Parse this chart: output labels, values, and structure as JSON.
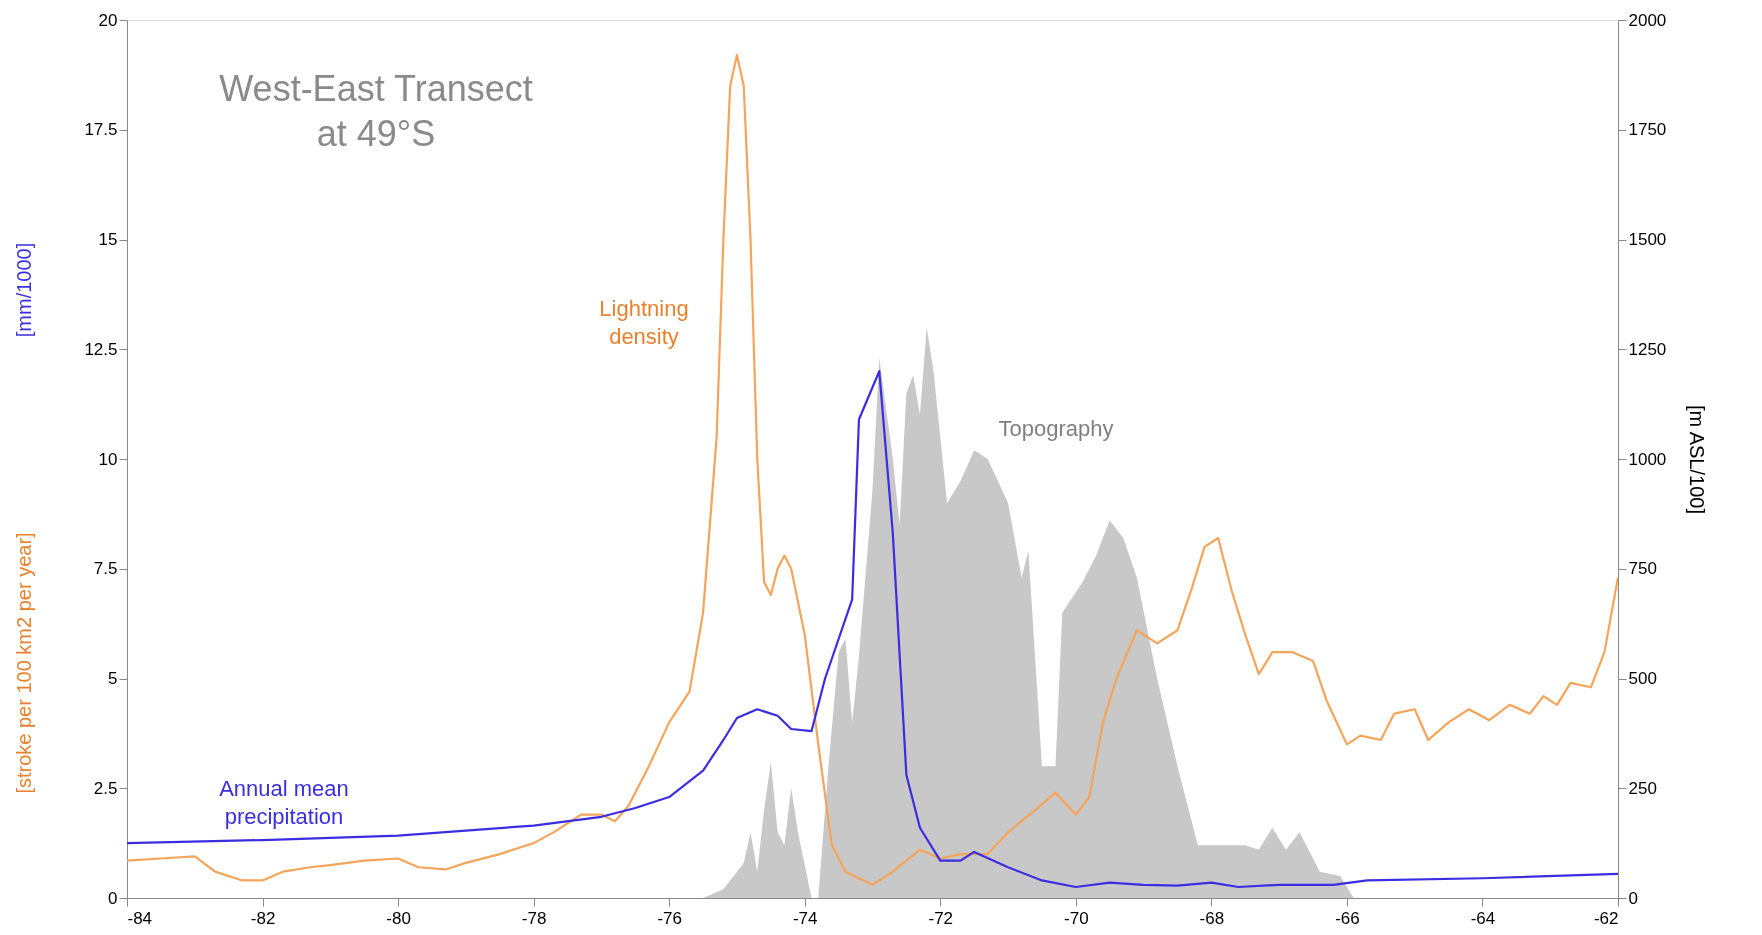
{
  "chart_data": {
    "type": "line",
    "title": "West-East Transect\nat 49°S",
    "ylabel": "[stroke per 100 km2 per year]",
    "y2label": "[m ASL/100]",
    "annotations": [
      "[mm/1000]"
    ],
    "xlim": [
      -84,
      -62
    ],
    "xticks": [
      -84,
      -82,
      -80,
      -78,
      -76,
      -74,
      -72,
      -70,
      -68,
      -66,
      -64,
      -62
    ],
    "ylim": [
      0,
      20
    ],
    "yticks": [
      0,
      2.5,
      5,
      7.5,
      10,
      12.5,
      15,
      17.5,
      20
    ],
    "y2lim": [
      0,
      2000
    ],
    "y2ticks": [
      0,
      250,
      500,
      750,
      1000,
      1250,
      1500,
      1750,
      2000
    ],
    "grid": false,
    "legend": false,
    "series": [
      {
        "name": "Topography",
        "type": "area",
        "axis": "y2",
        "color": "#c8c8c8",
        "x": [
          -75.5,
          -75.2,
          -74.9,
          -74.8,
          -74.7,
          -74.6,
          -74.5,
          -74.4,
          -74.3,
          -74.2,
          -74.1,
          -73.9,
          -73.8,
          -73.65,
          -73.5,
          -73.4,
          -73.3,
          -73.2,
          -73.0,
          -72.9,
          -72.7,
          -72.6,
          -72.5,
          -72.4,
          -72.3,
          -72.2,
          -72.1,
          -71.9,
          -71.7,
          -71.5,
          -71.3,
          -71.0,
          -70.8,
          -70.7,
          -70.5,
          -70.3,
          -70.2,
          -69.9,
          -69.7,
          -69.5,
          -69.3,
          -69.1,
          -68.8,
          -68.5,
          -68.2,
          -67.9,
          -67.5,
          -67.3,
          -67.1,
          -66.9,
          -66.7,
          -66.4,
          -66.1,
          -65.9
        ],
        "values": [
          0,
          20,
          80,
          150,
          60,
          200,
          310,
          150,
          120,
          250,
          150,
          0,
          0,
          300,
          560,
          590,
          400,
          550,
          930,
          1230,
          1000,
          850,
          1150,
          1190,
          1100,
          1300,
          1200,
          900,
          950,
          1020,
          1000,
          900,
          730,
          790,
          300,
          300,
          650,
          720,
          780,
          860,
          820,
          730,
          500,
          300,
          120,
          120,
          120,
          110,
          160,
          110,
          150,
          60,
          50,
          0
        ]
      },
      {
        "name": "Lightning\ndensity",
        "type": "line",
        "color": "#f5a55a",
        "x": [
          -84,
          -83.5,
          -83,
          -82.7,
          -82.3,
          -82,
          -81.7,
          -81.3,
          -81,
          -80.5,
          -80,
          -79.7,
          -79.3,
          -79,
          -78.5,
          -78,
          -77.7,
          -77.3,
          -77,
          -76.8,
          -76.6,
          -76.3,
          -76,
          -75.7,
          -75.5,
          -75.3,
          -75.2,
          -75.1,
          -75.0,
          -74.9,
          -74.8,
          -74.7,
          -74.6,
          -74.5,
          -74.4,
          -74.3,
          -74.2,
          -74.0,
          -73.8,
          -73.6,
          -73.4,
          -73.0,
          -72.7,
          -72.3,
          -72.0,
          -71.7,
          -71.3,
          -71,
          -70.6,
          -70.3,
          -70.0,
          -69.8,
          -69.6,
          -69.4,
          -69.1,
          -68.8,
          -68.5,
          -68.3,
          -68.1,
          -67.9,
          -67.7,
          -67.5,
          -67.3,
          -67.1,
          -66.8,
          -66.5,
          -66.3,
          -66.0,
          -65.8,
          -65.5,
          -65.3,
          -65.0,
          -64.8,
          -64.5,
          -64.2,
          -63.9,
          -63.6,
          -63.3,
          -63.1,
          -62.9,
          -62.7,
          -62.4,
          -62.2,
          -62.0
        ],
        "values": [
          0.85,
          0.9,
          0.95,
          0.6,
          0.4,
          0.4,
          0.6,
          0.7,
          0.75,
          0.85,
          0.9,
          0.7,
          0.65,
          0.8,
          1.0,
          1.25,
          1.5,
          1.9,
          1.9,
          1.75,
          2.1,
          3.0,
          4.0,
          4.7,
          6.5,
          10.5,
          15,
          18.5,
          19.2,
          18.5,
          15,
          10,
          7.2,
          6.9,
          7.5,
          7.8,
          7.5,
          6,
          3.5,
          1.2,
          0.6,
          0.3,
          0.6,
          1.1,
          0.9,
          1.0,
          1.0,
          1.5,
          2.0,
          2.4,
          1.9,
          2.3,
          4,
          5.0,
          6.1,
          5.8,
          6.1,
          7.0,
          8.0,
          8.2,
          7.0,
          6.0,
          5.1,
          5.6,
          5.6,
          5.4,
          4.5,
          3.5,
          3.7,
          3.6,
          4.2,
          4.3,
          3.6,
          4.0,
          4.3,
          4.05,
          4.4,
          4.2,
          4.6,
          4.4,
          4.9,
          4.8,
          5.6,
          7.3
        ]
      },
      {
        "name": "Annual mean\nprecipitation",
        "type": "line",
        "color": "#3a2ee0",
        "x": [
          -84,
          -82,
          -80,
          -78,
          -77,
          -76.5,
          -76,
          -75.5,
          -75.2,
          -75,
          -74.7,
          -74.4,
          -74.2,
          -73.9,
          -73.7,
          -73.3,
          -73.2,
          -72.9,
          -72.7,
          -72.5,
          -72.3,
          -72.0,
          -71.7,
          -71.5,
          -71.0,
          -70.5,
          -70.0,
          -69.5,
          -69,
          -68.5,
          -68.0,
          -67.6,
          -67.0,
          -66.2,
          -65.7,
          -64,
          -62
        ],
        "values": [
          1.25,
          1.32,
          1.42,
          1.65,
          1.85,
          2.05,
          2.3,
          2.9,
          3.6,
          4.1,
          4.3,
          4.15,
          3.85,
          3.8,
          5.0,
          6.8,
          10.9,
          12.0,
          8.3,
          2.8,
          1.6,
          0.85,
          0.85,
          1.05,
          0.7,
          0.4,
          0.25,
          0.35,
          0.3,
          0.28,
          0.35,
          0.25,
          0.3,
          0.3,
          0.4,
          0.45,
          0.55
        ]
      }
    ]
  }
}
